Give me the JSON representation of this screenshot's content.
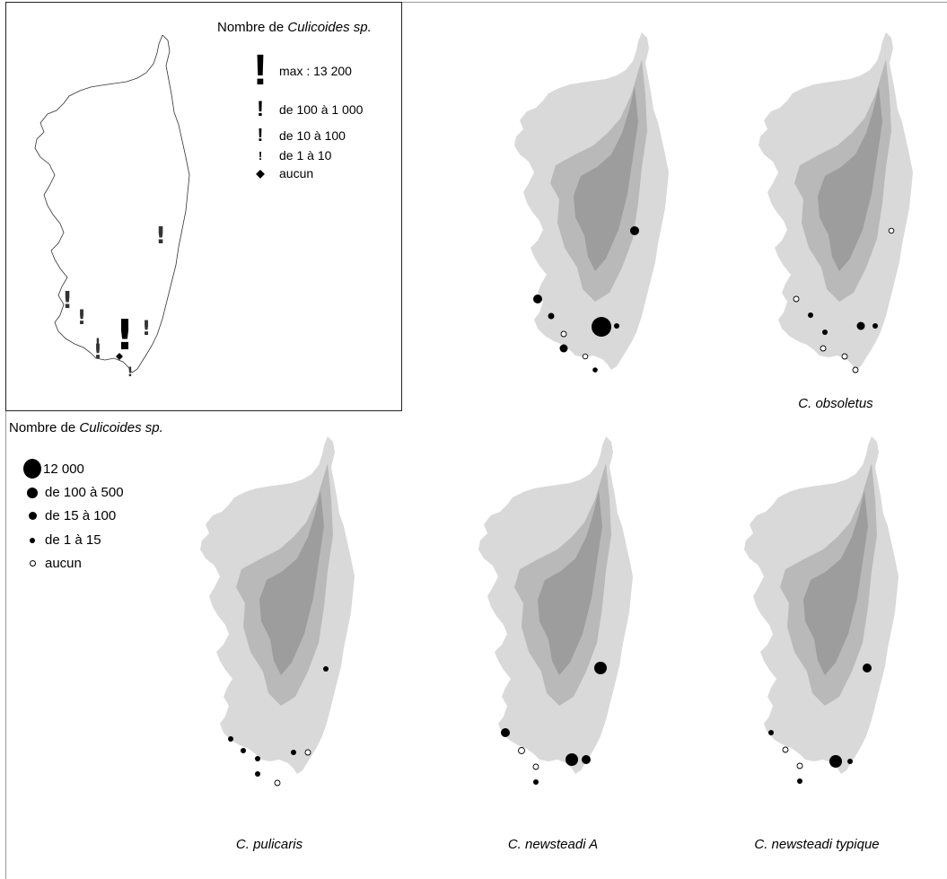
{
  "inset_legend": {
    "title_prefix": "Nombre de ",
    "title_italic": "Culicoides sp.",
    "items": [
      {
        "symbol": "!",
        "label": "max : 13 200"
      },
      {
        "symbol": "!",
        "label": "de 100 à 1 000"
      },
      {
        "symbol": "!",
        "label": "de 10 à 100"
      },
      {
        "symbol": "!",
        "label": "de 1 à 10"
      },
      {
        "symbol": "◆",
        "label": "aucun"
      }
    ]
  },
  "circle_legend": {
    "title_prefix": "Nombre de ",
    "title_italic": "Culicoides sp.",
    "items": [
      {
        "label": "12 000"
      },
      {
        "label": "de 100 à 500"
      },
      {
        "label": "de 15 à 100"
      },
      {
        "label": "de 1 à 15"
      },
      {
        "label": "aucun"
      }
    ]
  },
  "maps": [
    {
      "id": "total",
      "caption": ""
    },
    {
      "id": "obsoletus",
      "caption": "C. obsoletus"
    },
    {
      "id": "pulicaris",
      "caption": "C. pulicaris"
    },
    {
      "id": "newsteadiA",
      "caption": "C. newsteadi A"
    },
    {
      "id": "newsteadi_typ",
      "caption": "C. newsteadi typique"
    }
  ],
  "colors": {
    "land": "#d9d9d9",
    "relief": "#b9b9b9",
    "relief_dark": "#9d9d9d",
    "symbol": "#000000"
  }
}
